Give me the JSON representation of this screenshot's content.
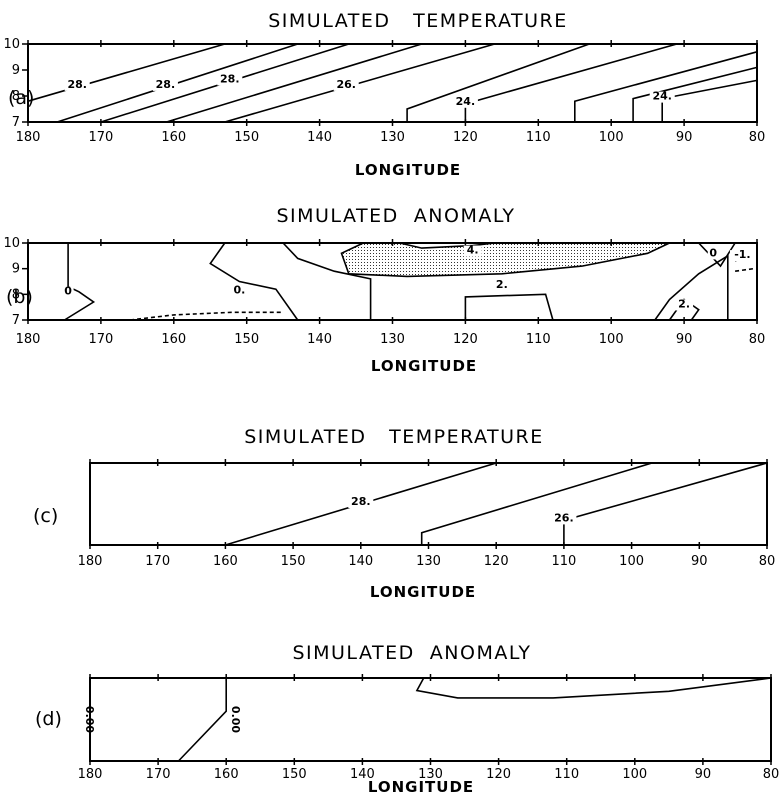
{
  "panels": [
    {
      "label": "(a)",
      "title": "SIMULATED   TEMPERATURE",
      "xlabel": "LONGITUDE"
    },
    {
      "label": "(b)",
      "title": "SIMULATED  ANOMALY",
      "xlabel": "LONGITUDE"
    },
    {
      "label": "(c)",
      "title": "SIMULATED   TEMPERATURE",
      "xlabel": "LONGITUDE"
    },
    {
      "label": "(d)",
      "title": "SIMULATED  ANOMALY",
      "xlabel": "LONGITUDE"
    }
  ],
  "chart_data": [
    {
      "type": "line",
      "panel": "a",
      "title": "SIMULATED   TEMPERATURE",
      "xlabel": "LONGITUDE",
      "xlim": [
        180,
        80
      ],
      "ylim": [
        7,
        10
      ],
      "xticks": [
        180,
        170,
        160,
        150,
        140,
        130,
        120,
        110,
        100,
        90,
        80
      ],
      "yticks": [
        7,
        8,
        9,
        10
      ],
      "contours": [
        {
          "label": "28.",
          "points": [
            [
              180,
              7.8
            ],
            [
              153,
              10
            ]
          ]
        },
        {
          "label": "28.",
          "points": [
            [
              176,
              7
            ],
            [
              143,
              10
            ]
          ]
        },
        {
          "label": "28.",
          "points": [
            [
              170,
              7
            ],
            [
              136,
              10
            ]
          ]
        },
        {
          "label": "",
          "points": [
            [
              161,
              7
            ],
            [
              126,
              10
            ]
          ]
        },
        {
          "label": "26.",
          "points": [
            [
              153,
              7
            ],
            [
              116,
              10
            ]
          ]
        },
        {
          "label": "",
          "points": [
            [
              128,
              7
            ],
            [
              128,
              7.5
            ],
            [
              103,
              10
            ]
          ]
        },
        {
          "label": "24.",
          "points": [
            [
              120,
              7
            ],
            [
              120,
              7.7
            ],
            [
              91,
              10
            ]
          ]
        },
        {
          "label": "",
          "points": [
            [
              105,
              7
            ],
            [
              105,
              7.8
            ],
            [
              80,
              9.7
            ]
          ]
        },
        {
          "label": "",
          "points": [
            [
              97,
              7
            ],
            [
              97,
              7.9
            ],
            [
              80,
              9.1
            ]
          ]
        },
        {
          "label": "24.",
          "points": [
            [
              93,
              7
            ],
            [
              93,
              7.9
            ],
            [
              80,
              8.6
            ]
          ]
        }
      ]
    },
    {
      "type": "line",
      "panel": "b",
      "title": "SIMULATED  ANOMALY",
      "xlabel": "LONGITUDE",
      "xlim": [
        180,
        80
      ],
      "ylim": [
        7,
        10
      ],
      "xticks": [
        180,
        170,
        160,
        150,
        140,
        130,
        120,
        110,
        100,
        90,
        80
      ],
      "yticks": [
        7,
        8,
        9,
        10
      ],
      "shaded_region": "anomaly > 2",
      "contours": [
        {
          "label": "0",
          "points": [
            [
              174.5,
              10
            ],
            [
              174.5,
              8.3
            ],
            [
              173,
              8.1
            ],
            [
              171,
              7.7
            ],
            [
              175,
              7
            ]
          ]
        },
        {
          "label": "0.",
          "points": [
            [
              153,
              10
            ],
            [
              155,
              9.2
            ],
            [
              151,
              8.5
            ],
            [
              146,
              8.2
            ],
            [
              143,
              7
            ]
          ]
        },
        {
          "label": "",
          "dashed": true,
          "points": [
            [
              166,
              7
            ],
            [
              160,
              7.2
            ],
            [
              152,
              7.3
            ],
            [
              145,
              7.3
            ]
          ]
        },
        {
          "label": "",
          "points": [
            [
              145,
              10
            ],
            [
              143,
              9.4
            ],
            [
              138,
              8.9
            ],
            [
              133,
              8.6
            ],
            [
              133,
              7
            ]
          ]
        },
        {
          "label": "4.",
          "points": [
            [
              129,
              10
            ],
            [
              126,
              9.8
            ],
            [
              119,
              9.9
            ],
            [
              116,
              10
            ]
          ]
        },
        {
          "label": "2.",
          "points": [
            [
              134,
              10
            ],
            [
              137,
              9.6
            ],
            [
              136,
              8.8
            ],
            [
              128,
              8.7
            ],
            [
              115,
              8.8
            ],
            [
              104,
              9.1
            ],
            [
              95,
              9.6
            ],
            [
              92,
              10
            ]
          ]
        },
        {
          "label": "",
          "points": [
            [
              120,
              7
            ],
            [
              120,
              7.9
            ],
            [
              109,
              8
            ],
            [
              108,
              7
            ]
          ]
        },
        {
          "label": "",
          "points": [
            [
              94,
              7
            ],
            [
              92,
              7.8
            ],
            [
              88,
              8.8
            ],
            [
              84,
              9.5
            ],
            [
              84,
              7
            ]
          ]
        },
        {
          "label": "2.",
          "points": [
            [
              92,
              7
            ],
            [
              90,
              7.8
            ],
            [
              88,
              7.4
            ],
            [
              89,
              7
            ]
          ]
        },
        {
          "label": "0",
          "points": [
            [
              88,
              10
            ],
            [
              86,
              9.4
            ],
            [
              85,
              9.1
            ],
            [
              83,
              10
            ]
          ]
        },
        {
          "label": "-1.",
          "dashed": true,
          "points": [
            [
              83,
              9.3
            ],
            [
              81,
              9.6
            ]
          ]
        },
        {
          "label": "",
          "dashed": true,
          "points": [
            [
              83,
              8.9
            ],
            [
              80.5,
              9
            ]
          ]
        }
      ]
    },
    {
      "type": "line",
      "panel": "c",
      "title": "SIMULATED   TEMPERATURE",
      "xlabel": "LONGITUDE",
      "xlim": [
        180,
        80
      ],
      "ylim": [
        0,
        1
      ],
      "xticks": [
        180,
        170,
        160,
        150,
        140,
        130,
        120,
        110,
        100,
        90,
        80
      ],
      "contours": [
        {
          "label": "28.",
          "points": [
            [
              160,
              0
            ],
            [
              120,
              1
            ]
          ]
        },
        {
          "label": "",
          "points": [
            [
              131,
              0
            ],
            [
              131,
              0.15
            ],
            [
              97,
              1
            ]
          ]
        },
        {
          "label": "26.",
          "points": [
            [
              110,
              0
            ],
            [
              110,
              0.3
            ],
            [
              80,
              1
            ]
          ]
        }
      ]
    },
    {
      "type": "line",
      "panel": "d",
      "title": "SIMULATED  ANOMALY",
      "xlabel": "LONGITUDE",
      "xlim": [
        180,
        80
      ],
      "ylim": [
        0,
        1
      ],
      "xticks": [
        180,
        170,
        160,
        150,
        140,
        130,
        120,
        110,
        100,
        90,
        80
      ],
      "contours": [
        {
          "label": "0.00",
          "points": [
            [
              180,
              0
            ],
            [
              180,
              1
            ]
          ]
        },
        {
          "label": "0.00",
          "points": [
            [
              167,
              0
            ],
            [
              160,
              0.6
            ],
            [
              160,
              1
            ]
          ]
        },
        {
          "label": "",
          "points": [
            [
              131,
              1
            ],
            [
              132,
              0.85
            ],
            [
              126,
              0.76
            ],
            [
              112,
              0.76
            ],
            [
              95,
              0.84
            ],
            [
              80,
              1
            ]
          ]
        }
      ]
    }
  ]
}
